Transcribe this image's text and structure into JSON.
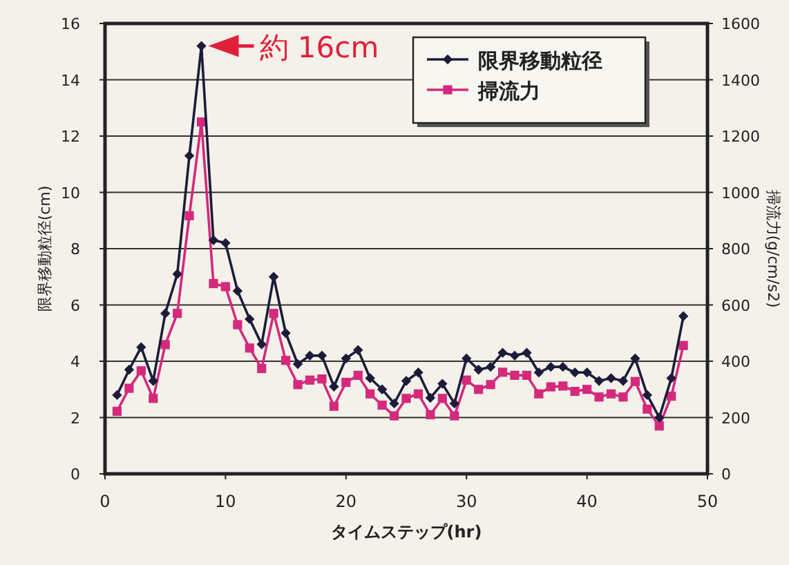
{
  "chart_data": {
    "type": "line",
    "xlabel": "タイムステップ(hr)",
    "ylabel": "限界移動粒径(cm)",
    "y2label": "掃流力(g/cm/s2)",
    "x": [
      1,
      2,
      3,
      4,
      5,
      6,
      7,
      8,
      9,
      10,
      11,
      12,
      13,
      14,
      15,
      16,
      17,
      18,
      19,
      20,
      21,
      22,
      23,
      24,
      25,
      26,
      27,
      28,
      29,
      30,
      31,
      32,
      33,
      34,
      35,
      36,
      37,
      38,
      39,
      40,
      41,
      42,
      43,
      44,
      45,
      46,
      47,
      48
    ],
    "series": [
      {
        "name": "限界移動粒径",
        "color": "#1c1c3a",
        "marker": "diamond",
        "values": [
          2.8,
          3.7,
          4.5,
          3.3,
          5.7,
          7.1,
          11.3,
          15.2,
          8.3,
          8.2,
          6.5,
          5.5,
          4.6,
          7.0,
          5.0,
          3.9,
          4.2,
          4.2,
          3.1,
          4.1,
          4.4,
          3.4,
          3.0,
          2.5,
          3.3,
          3.6,
          2.7,
          3.2,
          2.5,
          4.1,
          3.7,
          3.8,
          4.3,
          4.2,
          4.3,
          3.6,
          3.8,
          3.8,
          3.6,
          3.6,
          3.3,
          3.4,
          3.3,
          4.1,
          2.8,
          2.0,
          3.4,
          5.6
        ]
      },
      {
        "name": "掃流力",
        "color": "#d42a7c",
        "marker": "square",
        "axis": "y2",
        "values": [
          222,
          304,
          366,
          268,
          459,
          570,
          917,
          1250,
          676,
          665,
          530,
          447,
          374,
          570,
          403,
          317,
          333,
          337,
          240,
          325,
          350,
          284,
          244,
          206,
          268,
          284,
          210,
          268,
          206,
          333,
          300,
          317,
          361,
          350,
          350,
          284,
          309,
          312,
          293,
          300,
          273,
          284,
          273,
          328,
          230,
          170,
          276,
          456
        ]
      }
    ],
    "xlim": [
      0,
      50
    ],
    "xticks": [
      0,
      10,
      20,
      30,
      40,
      50
    ],
    "ylim": [
      0,
      16
    ],
    "yticks": [
      0,
      2,
      4,
      6,
      8,
      10,
      12,
      14,
      16
    ],
    "y2lim": [
      0,
      1600
    ],
    "y2ticks": [
      0,
      200,
      400,
      600,
      800,
      1000,
      1200,
      1400,
      1600
    ],
    "annotations": [
      {
        "text": "約 16cm",
        "x": 8,
        "y": 15.2
      }
    ],
    "grid": "y",
    "legend": "top right",
    "line_style": "solid"
  }
}
